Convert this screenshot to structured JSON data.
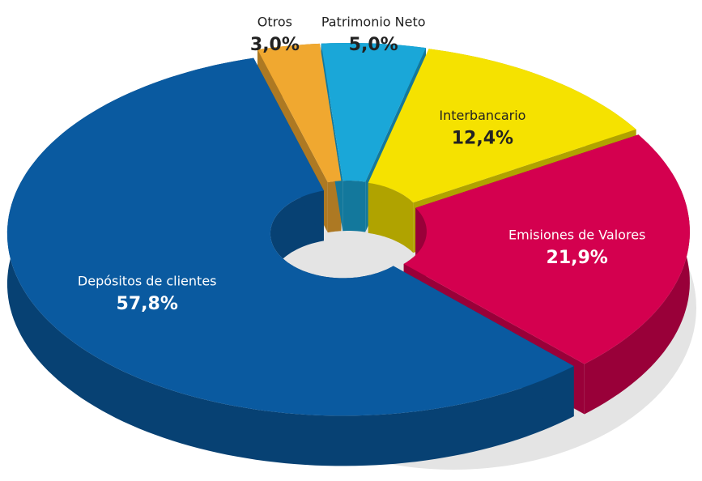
{
  "chart_data": {
    "type": "donut",
    "categories": [
      "Otros",
      "Patrimonio Neto",
      "Interbancario",
      "Emisiones de Valores",
      "Depósitos de clientes"
    ],
    "values": [
      3.0,
      5.0,
      12.4,
      21.9,
      57.8
    ],
    "value_labels": [
      "3,0%",
      "5,0%",
      "12,4%",
      "21,9%",
      "57,8%"
    ],
    "colors": [
      "#f0a830",
      "#1aa7d8",
      "#f5e200",
      "#d4004f",
      "#0a5aa0"
    ]
  }
}
